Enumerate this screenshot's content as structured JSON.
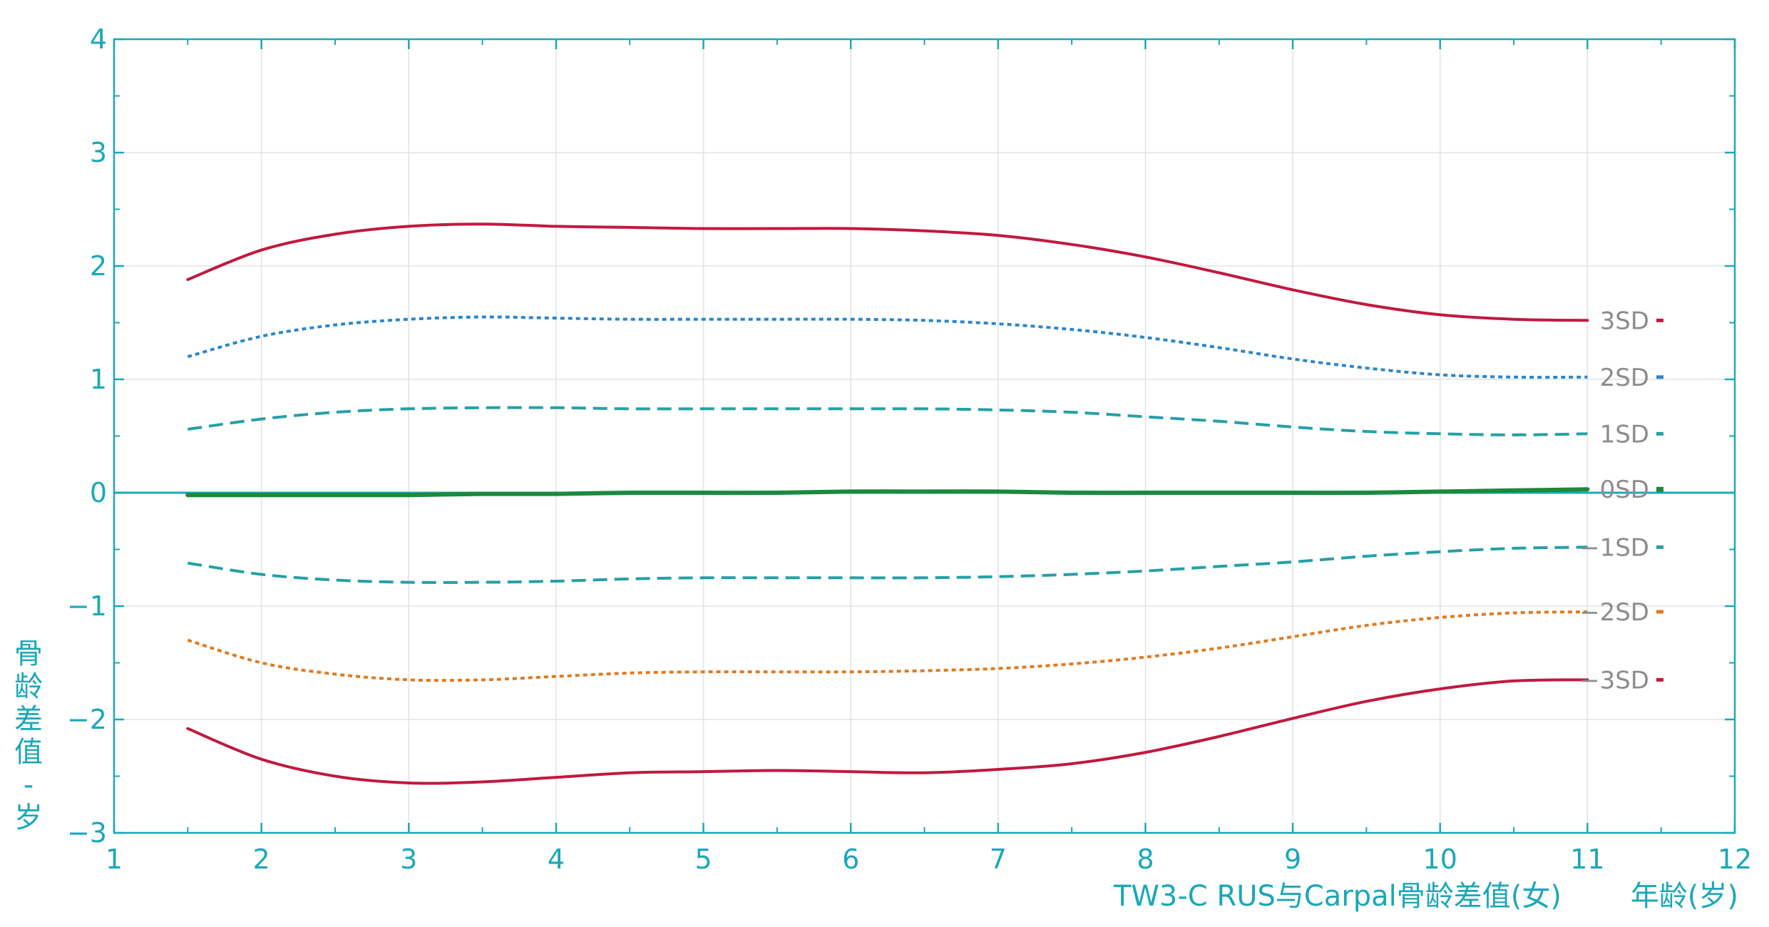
{
  "chart_data": {
    "type": "line",
    "title": "TW3-C RUS与Carpal骨龄差值(女)",
    "xlabel": "年龄(岁)",
    "ylabel": "骨龄差值 - 岁",
    "xlim": [
      1,
      12
    ],
    "ylim": [
      -3,
      4
    ],
    "x_ticks": [
      "1",
      "2",
      "3",
      "4",
      "5",
      "6",
      "7",
      "8",
      "9",
      "10",
      "11",
      "12"
    ],
    "y_ticks": [
      "−3",
      "−2",
      "−1",
      "0",
      "1",
      "2",
      "3",
      "4"
    ],
    "grid": true,
    "legend": "inline-right",
    "x": [
      1.5,
      2,
      2.5,
      3,
      3.5,
      4,
      4.5,
      5,
      5.5,
      6,
      6.5,
      7,
      7.5,
      8,
      8.5,
      9,
      9.5,
      10,
      10.5,
      11
    ],
    "series": [
      {
        "name": "3SD",
        "style": "solid",
        "color": "#c0193f",
        "values": [
          1.88,
          2.14,
          2.28,
          2.35,
          2.37,
          2.35,
          2.34,
          2.33,
          2.33,
          2.33,
          2.31,
          2.27,
          2.19,
          2.08,
          1.94,
          1.79,
          1.66,
          1.57,
          1.53,
          1.52
        ]
      },
      {
        "name": "2SD",
        "style": "dotted",
        "color": "#2a86c8",
        "values": [
          1.2,
          1.38,
          1.48,
          1.53,
          1.55,
          1.54,
          1.53,
          1.53,
          1.53,
          1.53,
          1.52,
          1.49,
          1.44,
          1.37,
          1.28,
          1.18,
          1.1,
          1.04,
          1.02,
          1.02
        ]
      },
      {
        "name": "1SD",
        "style": "dashed",
        "color": "#25a0a6",
        "values": [
          0.56,
          0.65,
          0.71,
          0.74,
          0.75,
          0.75,
          0.74,
          0.74,
          0.74,
          0.74,
          0.74,
          0.73,
          0.71,
          0.67,
          0.63,
          0.58,
          0.54,
          0.52,
          0.51,
          0.52
        ]
      },
      {
        "name": "0SD",
        "style": "solid-thick",
        "color": "#1b8a3e",
        "values": [
          -0.02,
          -0.02,
          -0.02,
          -0.02,
          -0.01,
          -0.01,
          0.0,
          0.0,
          0.0,
          0.01,
          0.01,
          0.01,
          0.0,
          0.0,
          0.0,
          0.0,
          0.0,
          0.01,
          0.02,
          0.03
        ]
      },
      {
        "name": "−1SD",
        "style": "dashed",
        "color": "#25a0a6",
        "values": [
          -0.62,
          -0.72,
          -0.77,
          -0.79,
          -0.79,
          -0.78,
          -0.76,
          -0.75,
          -0.75,
          -0.75,
          -0.75,
          -0.74,
          -0.72,
          -0.69,
          -0.65,
          -0.61,
          -0.56,
          -0.52,
          -0.49,
          -0.48
        ]
      },
      {
        "name": "−2SD",
        "style": "dotted",
        "color": "#e07a20",
        "values": [
          -1.3,
          -1.5,
          -1.6,
          -1.65,
          -1.65,
          -1.62,
          -1.59,
          -1.58,
          -1.58,
          -1.58,
          -1.57,
          -1.55,
          -1.51,
          -1.45,
          -1.37,
          -1.27,
          -1.17,
          -1.1,
          -1.06,
          -1.05
        ]
      },
      {
        "name": "−3SD",
        "style": "solid",
        "color": "#c0193f",
        "values": [
          -2.08,
          -2.35,
          -2.5,
          -2.56,
          -2.55,
          -2.51,
          -2.47,
          -2.46,
          -2.45,
          -2.46,
          -2.47,
          -2.44,
          -2.39,
          -2.29,
          -2.15,
          -1.99,
          -1.84,
          -1.73,
          -1.66,
          -1.65
        ]
      }
    ]
  }
}
